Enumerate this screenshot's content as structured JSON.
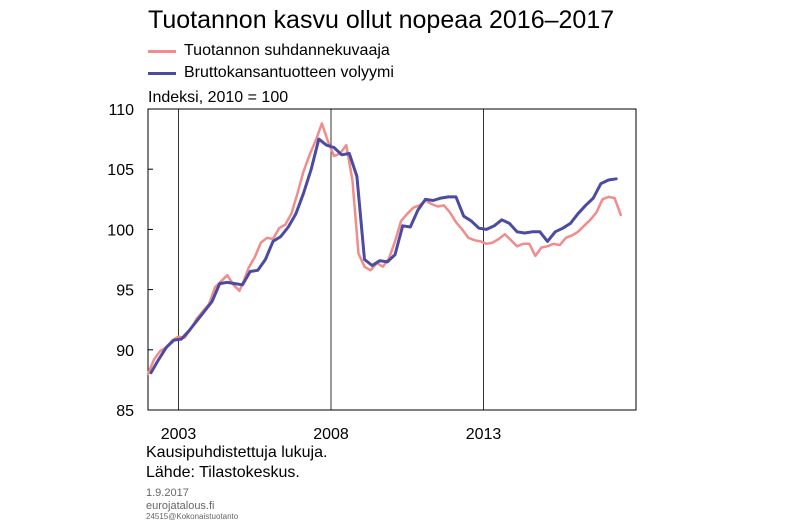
{
  "chart_data": {
    "type": "line",
    "title": "Tuotannon kasvu ollut nopeaa 2016–2017",
    "unit_label": "Indeksi, 2010 = 100",
    "ylim": [
      85,
      110
    ],
    "yticks": [
      85,
      90,
      95,
      100,
      105,
      110
    ],
    "xlim": [
      2002.0,
      2018.0
    ],
    "xticks": [
      2003,
      2008,
      2013
    ],
    "xtick_labels": [
      "2003",
      "2008",
      "2013"
    ],
    "grid": "vertical lines at 2008 and 2013",
    "legend_position": "top-left",
    "series": [
      {
        "name": "Tuotannon suhdannekuvaaja",
        "color": "#f08c8c",
        "x": [
          2002.0,
          2002.2,
          2002.4,
          2002.6,
          2002.8,
          2003.0,
          2003.2,
          2003.4,
          2003.6,
          2003.8,
          2004.0,
          2004.2,
          2004.4,
          2004.6,
          2004.8,
          2005.0,
          2005.15,
          2005.3,
          2005.5,
          2005.7,
          2005.9,
          2006.1,
          2006.3,
          2006.5,
          2006.7,
          2006.9,
          2007.1,
          2007.3,
          2007.5,
          2007.7,
          2007.9,
          2008.1,
          2008.3,
          2008.5,
          2008.7,
          2008.9,
          2009.1,
          2009.3,
          2009.5,
          2009.7,
          2009.9,
          2010.1,
          2010.3,
          2010.5,
          2010.7,
          2010.9,
          2011.1,
          2011.3,
          2011.5,
          2011.7,
          2011.9,
          2012.1,
          2012.3,
          2012.5,
          2012.7,
          2012.9,
          2013.1,
          2013.3,
          2013.5,
          2013.7,
          2013.9,
          2014.1,
          2014.3,
          2014.5,
          2014.7,
          2014.9,
          2015.1,
          2015.3,
          2015.5,
          2015.7,
          2015.9,
          2016.1,
          2016.3,
          2016.5,
          2016.7,
          2016.9,
          2017.1,
          2017.3,
          2017.5
        ],
        "values": [
          88.0,
          89.2,
          89.9,
          90.2,
          90.8,
          91.1,
          91.0,
          91.7,
          92.6,
          93.2,
          93.8,
          95.2,
          95.7,
          96.2,
          95.4,
          94.9,
          95.8,
          96.8,
          97.7,
          98.9,
          99.3,
          99.2,
          100.1,
          100.4,
          101.3,
          103.0,
          104.8,
          106.2,
          107.4,
          108.8,
          107.3,
          106.1,
          106.3,
          107.0,
          104.1,
          98.0,
          96.9,
          96.6,
          97.2,
          96.9,
          97.6,
          99.0,
          100.7,
          101.3,
          101.8,
          102.0,
          102.4,
          102.1,
          101.9,
          102.0,
          101.4,
          100.6,
          100.0,
          99.3,
          99.1,
          99.0,
          98.8,
          98.9,
          99.2,
          99.6,
          99.1,
          98.6,
          98.8,
          98.8,
          97.8,
          98.5,
          98.6,
          98.8,
          98.7,
          99.3,
          99.5,
          99.8,
          100.3,
          100.8,
          101.4,
          102.5,
          102.7,
          102.6,
          101.2
        ]
      },
      {
        "name": "Bruttokansantuotteen volyymi",
        "color": "#4b4ba2",
        "x": [
          2002.1,
          2002.35,
          2002.6,
          2002.85,
          2003.1,
          2003.35,
          2003.6,
          2003.85,
          2004.1,
          2004.35,
          2004.6,
          2004.85,
          2005.1,
          2005.35,
          2005.6,
          2005.85,
          2006.1,
          2006.35,
          2006.6,
          2006.85,
          2007.1,
          2007.35,
          2007.6,
          2007.85,
          2008.1,
          2008.35,
          2008.6,
          2008.85,
          2009.1,
          2009.35,
          2009.6,
          2009.85,
          2010.1,
          2010.35,
          2010.6,
          2010.85,
          2011.1,
          2011.35,
          2011.6,
          2011.85,
          2012.1,
          2012.35,
          2012.6,
          2012.85,
          2013.1,
          2013.35,
          2013.6,
          2013.85,
          2014.1,
          2014.35,
          2014.6,
          2014.85,
          2015.1,
          2015.35,
          2015.6,
          2015.85,
          2016.1,
          2016.35,
          2016.6,
          2016.85,
          2017.1,
          2017.35
        ],
        "values": [
          88.1,
          89.2,
          90.2,
          90.8,
          90.9,
          91.6,
          92.4,
          93.2,
          94.0,
          95.5,
          95.6,
          95.5,
          95.4,
          96.5,
          96.6,
          97.5,
          99.0,
          99.4,
          100.2,
          101.3,
          103.0,
          105.0,
          107.5,
          107.0,
          106.8,
          106.2,
          106.3,
          104.4,
          97.5,
          97.0,
          97.4,
          97.3,
          97.9,
          100.3,
          100.2,
          101.6,
          102.5,
          102.4,
          102.6,
          102.7,
          102.7,
          101.1,
          100.7,
          100.1,
          100.0,
          100.3,
          100.8,
          100.5,
          99.8,
          99.7,
          99.8,
          99.8,
          99.0,
          99.8,
          100.1,
          100.5,
          101.3,
          102.0,
          102.6,
          103.8,
          104.1,
          104.2
        ]
      }
    ],
    "notes": [
      "Kausipuhdistettuja lukuja.",
      "Lähde: Tilastokeskus."
    ]
  },
  "meta": {
    "date": "1.9.2017",
    "site": "eurojatalous.fi",
    "code": "24515@Kokonaistuotanto"
  }
}
